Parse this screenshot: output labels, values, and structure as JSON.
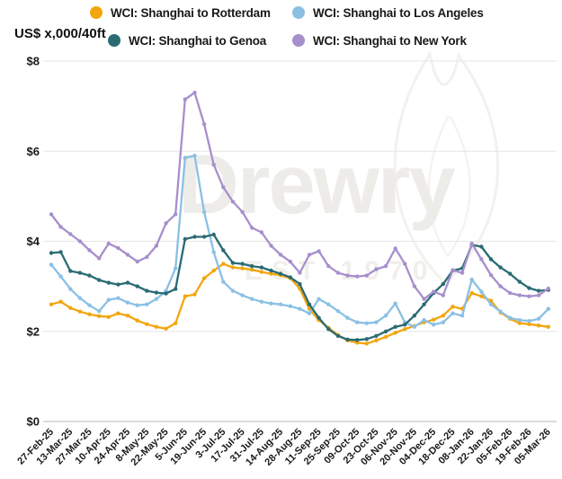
{
  "axis_title": "US$ x,000/40ft",
  "watermark": {
    "text": "Drewry",
    "subtext": "EST 1970"
  },
  "legend": [
    {
      "label": "WCI: Shanghai to Rotterdam",
      "color": "#F2A60D"
    },
    {
      "label": "WCI: Shanghai to Los Angeles",
      "color": "#8BC0E4"
    },
    {
      "label": "WCI: Shanghai to Genoa",
      "color": "#2A6B74"
    },
    {
      "label": "WCI: Shanghai to New York",
      "color": "#A78FCC"
    }
  ],
  "chart_data": {
    "type": "line",
    "title": "",
    "ylabel": "US$ x,000/40ft",
    "ylim": [
      0,
      8
    ],
    "yticks": [
      "$0",
      "$2",
      "$4",
      "$6",
      "$8"
    ],
    "grid": "horizontal",
    "legend_position": "top",
    "x": [
      "27-Feb-25",
      "06-Mar-25",
      "13-Mar-25",
      "20-Mar-25",
      "27-Mar-25",
      "03-Apr-25",
      "10-Apr-25",
      "17-Apr-25",
      "24-Apr-25",
      "01-May-25",
      "8-May-25",
      "15-May-25",
      "22-May-25",
      "29-May-25",
      "5-Jun-25",
      "12-Jun-25",
      "19-Jun-25",
      "26-Jun-25",
      "3-Jul-25",
      "10-Jul-25",
      "17-Jul-25",
      "24-Jul-25",
      "31-Jul-25",
      "07-Aug-25",
      "14-Aug-25",
      "21-Aug-25",
      "28-Aug-25",
      "04-Sep-25",
      "11-Sep-25",
      "18-Sep-25",
      "25-Sep-25",
      "02-Oct-25",
      "09-Oct-25",
      "16-Oct-25",
      "23-Oct-25",
      "30-Oct-25",
      "06-Nov-25",
      "13-Nov-25",
      "20-Nov-25",
      "27-Nov-25",
      "04-Dec-25",
      "11-Dec-25",
      "18-Dec-25",
      "01-Jan-26",
      "08-Jan-26",
      "15-Jan-26",
      "22-Jan-26",
      "29-Jan-26",
      "05-Feb-26",
      "12-Feb-26",
      "19-Feb-26",
      "26-Feb-26",
      "05-Mar-26"
    ],
    "tick_every": 2,
    "series": [
      {
        "name": "WCI: Shanghai to Rotterdam",
        "key": "rotterdam",
        "color": "#F2A60D",
        "values": [
          2.6,
          2.66,
          2.52,
          2.44,
          2.38,
          2.34,
          2.32,
          2.4,
          2.35,
          2.24,
          2.16,
          2.1,
          2.06,
          2.18,
          2.78,
          2.82,
          3.18,
          3.35,
          3.5,
          3.42,
          3.4,
          3.37,
          3.32,
          3.28,
          3.25,
          3.18,
          2.95,
          2.5,
          2.25,
          2.08,
          1.92,
          1.8,
          1.75,
          1.73,
          1.8,
          1.88,
          1.97,
          2.05,
          2.12,
          2.2,
          2.26,
          2.35,
          2.55,
          2.5,
          2.85,
          2.78,
          2.68,
          2.42,
          2.28,
          2.18,
          2.16,
          2.13,
          2.1
        ]
      },
      {
        "name": "WCI: Shanghai to Los Angeles",
        "key": "los_angeles",
        "color": "#8BC0E4",
        "values": [
          3.48,
          3.22,
          2.94,
          2.74,
          2.58,
          2.45,
          2.7,
          2.74,
          2.64,
          2.58,
          2.6,
          2.72,
          2.9,
          3.4,
          5.85,
          5.9,
          4.65,
          3.76,
          3.1,
          2.9,
          2.8,
          2.72,
          2.66,
          2.62,
          2.6,
          2.56,
          2.5,
          2.4,
          2.72,
          2.6,
          2.45,
          2.3,
          2.2,
          2.18,
          2.2,
          2.35,
          2.62,
          2.2,
          2.1,
          2.25,
          2.15,
          2.2,
          2.4,
          2.35,
          3.15,
          2.88,
          2.6,
          2.44,
          2.3,
          2.25,
          2.23,
          2.28,
          2.5
        ]
      },
      {
        "name": "WCI: Shanghai to Genoa",
        "key": "genoa",
        "color": "#2A6B74",
        "values": [
          3.74,
          3.76,
          3.34,
          3.3,
          3.24,
          3.14,
          3.08,
          3.04,
          3.08,
          3.0,
          2.9,
          2.86,
          2.84,
          2.94,
          4.05,
          4.1,
          4.1,
          4.15,
          3.8,
          3.52,
          3.5,
          3.45,
          3.42,
          3.35,
          3.28,
          3.2,
          3.05,
          2.6,
          2.3,
          2.05,
          1.9,
          1.82,
          1.81,
          1.83,
          1.9,
          2.0,
          2.1,
          2.15,
          2.35,
          2.6,
          2.85,
          3.05,
          3.35,
          3.4,
          3.92,
          3.88,
          3.6,
          3.42,
          3.28,
          3.1,
          2.96,
          2.9,
          2.92
        ]
      },
      {
        "name": "WCI: Shanghai to New York",
        "key": "new_york",
        "color": "#A78FCC",
        "values": [
          4.6,
          4.32,
          4.16,
          4.0,
          3.8,
          3.62,
          3.95,
          3.85,
          3.7,
          3.55,
          3.65,
          3.9,
          4.4,
          4.6,
          7.15,
          7.3,
          6.6,
          5.7,
          5.2,
          4.88,
          4.65,
          4.3,
          4.2,
          3.9,
          3.7,
          3.55,
          3.3,
          3.7,
          3.78,
          3.45,
          3.3,
          3.24,
          3.22,
          3.24,
          3.38,
          3.45,
          3.84,
          3.5,
          3.0,
          2.72,
          2.88,
          2.8,
          3.36,
          3.3,
          3.95,
          3.6,
          3.25,
          3.0,
          2.85,
          2.8,
          2.78,
          2.8,
          2.95
        ]
      }
    ]
  }
}
